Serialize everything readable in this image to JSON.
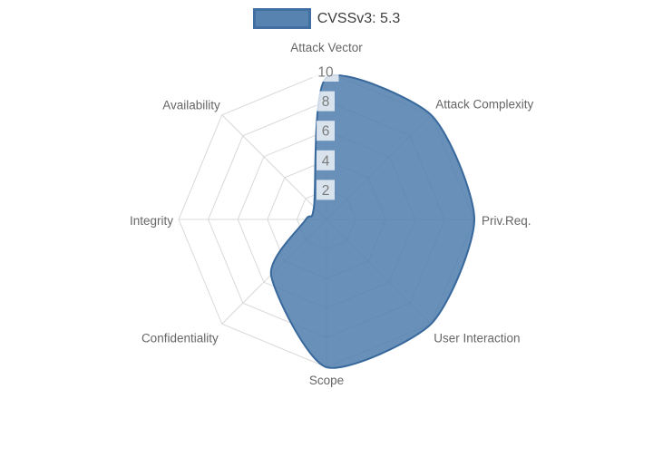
{
  "legend": {
    "label": "CVSSv3: 5.3"
  },
  "colors": {
    "series_fill": "#4e7dac",
    "series_fill_opacity": 0.85,
    "series_border": "#38689c",
    "grid": "#d9d9d9",
    "tick_text": "#7b7b7b",
    "tick_backdrop": "rgba(255,255,255,0.75)",
    "axis_label": "#666666",
    "legend_text": "#3d3d3d",
    "background": "#ffffff"
  },
  "chart_data": {
    "type": "radar",
    "title": "",
    "categories": [
      "Attack Vector",
      "Attack Complexity",
      "Priv.Req.",
      "User Interaction",
      "Scope",
      "Confidentiality",
      "Integrity",
      "Availability"
    ],
    "series": [
      {
        "name": "CVSSv3: 5.3",
        "values": [
          9.6,
          10,
          10,
          10,
          10,
          5.3,
          1.4,
          1.2
        ]
      }
    ],
    "radial_ticks": [
      2,
      4,
      6,
      8,
      10
    ],
    "range": [
      0,
      10
    ],
    "grid_shape": "polygon",
    "grid_on": true,
    "legend_position": "top",
    "start_axis": "top",
    "direction": "clockwise"
  }
}
